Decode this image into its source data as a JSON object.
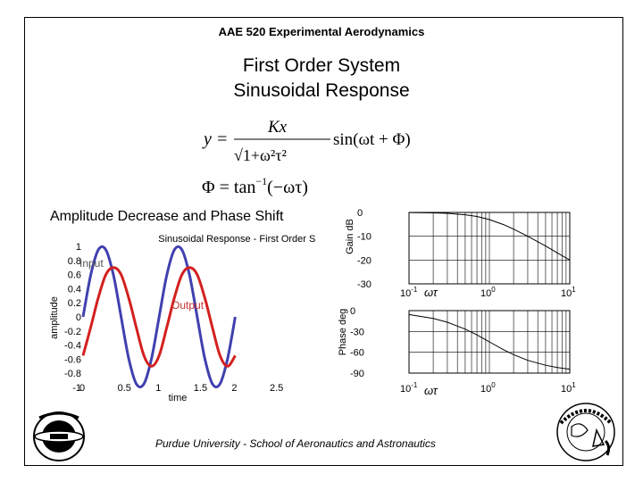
{
  "header": "AAE 520 Experimental Aerodynamics",
  "title_lines": [
    "First Order System",
    "Sinusoidal Response"
  ],
  "equations": {
    "response": {
      "lhs": "y =",
      "numerator": "Kx",
      "denominator": "√1+ω²τ²",
      "rhs": "sin(ωt + Φ)"
    },
    "phase": {
      "lhs": "Φ = tan",
      "superscript": "−1",
      "rhs": "(−ωτ)"
    }
  },
  "section_heading": "Amplitude Decrease and Phase Shift",
  "footer": "Purdue University - School of Aeronautics and Astronautics",
  "colors": {
    "input": "#4040b0",
    "output": "#d42020",
    "output_label": "#c83030"
  },
  "chart_data": [
    {
      "type": "line",
      "title": "Sinusoidal Response - First Order System",
      "xlabel": "time",
      "ylabel": "amplitude",
      "xlim": [
        0,
        2.5
      ],
      "ylim": [
        -1,
        1
      ],
      "xticks": [
        "0",
        "0.5",
        "1",
        "1.5",
        "2",
        "2.5"
      ],
      "yticks": [
        "1",
        "0.8",
        "0.6",
        "0.4",
        "0.2",
        "0",
        "-0.2",
        "-0.4",
        "-0.6",
        "-0.8",
        "-1"
      ],
      "grid": false,
      "annotations": [
        "Input",
        "Output"
      ],
      "series": [
        {
          "name": "Input",
          "x": [
            0,
            0.1,
            0.2,
            0.3,
            0.4,
            0.5,
            0.6,
            0.7,
            0.8,
            0.9,
            1.0,
            1.1,
            1.2,
            1.3,
            1.4,
            1.5,
            1.6,
            1.7,
            1.8,
            1.9,
            2.0
          ],
          "y": [
            0,
            0.59,
            0.95,
            0.95,
            0.59,
            0,
            -0.59,
            -0.95,
            -0.95,
            -0.59,
            0,
            0.59,
            0.95,
            0.95,
            0.59,
            0,
            -0.59,
            -0.95,
            -0.95,
            -0.59,
            0
          ]
        },
        {
          "name": "Output",
          "x": [
            0,
            0.1,
            0.2,
            0.3,
            0.4,
            0.5,
            0.6,
            0.7,
            0.8,
            0.9,
            1.0,
            1.1,
            1.2,
            1.3,
            1.4,
            1.5,
            1.6,
            1.7,
            1.8,
            1.9,
            2.0
          ],
          "y": [
            -0.55,
            -0.15,
            0.27,
            0.6,
            0.7,
            0.6,
            0.27,
            -0.15,
            -0.55,
            -0.7,
            -0.55,
            -0.15,
            0.27,
            0.6,
            0.7,
            0.6,
            0.27,
            -0.15,
            -0.55,
            -0.7,
            -0.55
          ]
        }
      ]
    },
    {
      "type": "line",
      "ylabel": "Gain dB",
      "xscale": "log",
      "xlim": [
        0.1,
        10
      ],
      "ylim": [
        -30,
        0
      ],
      "yticks": [
        "0",
        "-10",
        "-20",
        "-30"
      ],
      "xticks": [
        {
          "base": "10",
          "exp": "-1"
        },
        {
          "base": "10",
          "exp": "0"
        },
        {
          "base": "10",
          "exp": "1"
        }
      ],
      "xlabel": "ωτ",
      "grid": true,
      "series": [
        {
          "x": [
            0.1,
            0.2,
            0.3,
            0.5,
            0.7,
            1,
            1.5,
            2,
            3,
            5,
            7,
            10
          ],
          "y": [
            -0.04,
            -0.17,
            -0.37,
            -0.97,
            -1.7,
            -3.0,
            -5.1,
            -7.0,
            -10.0,
            -14.1,
            -17.0,
            -20.0
          ]
        }
      ]
    },
    {
      "type": "line",
      "ylabel": "Phase deg",
      "xscale": "log",
      "xlim": [
        0.1,
        10
      ],
      "ylim": [
        -90,
        0
      ],
      "yticks": [
        "0",
        "-30",
        "-60",
        "-90"
      ],
      "xticks": [
        {
          "base": "10",
          "exp": "-1"
        },
        {
          "base": "10",
          "exp": "0"
        },
        {
          "base": "10",
          "exp": "1"
        }
      ],
      "xlabel": "ωτ",
      "grid": true,
      "series": [
        {
          "x": [
            0.1,
            0.2,
            0.3,
            0.5,
            0.7,
            1,
            1.5,
            2,
            3,
            5,
            7,
            10
          ],
          "y": [
            -5.7,
            -11.3,
            -16.7,
            -26.6,
            -35.0,
            -45.0,
            -56.3,
            -63.4,
            -71.6,
            -78.7,
            -81.9,
            -84.3
          ]
        }
      ]
    }
  ]
}
